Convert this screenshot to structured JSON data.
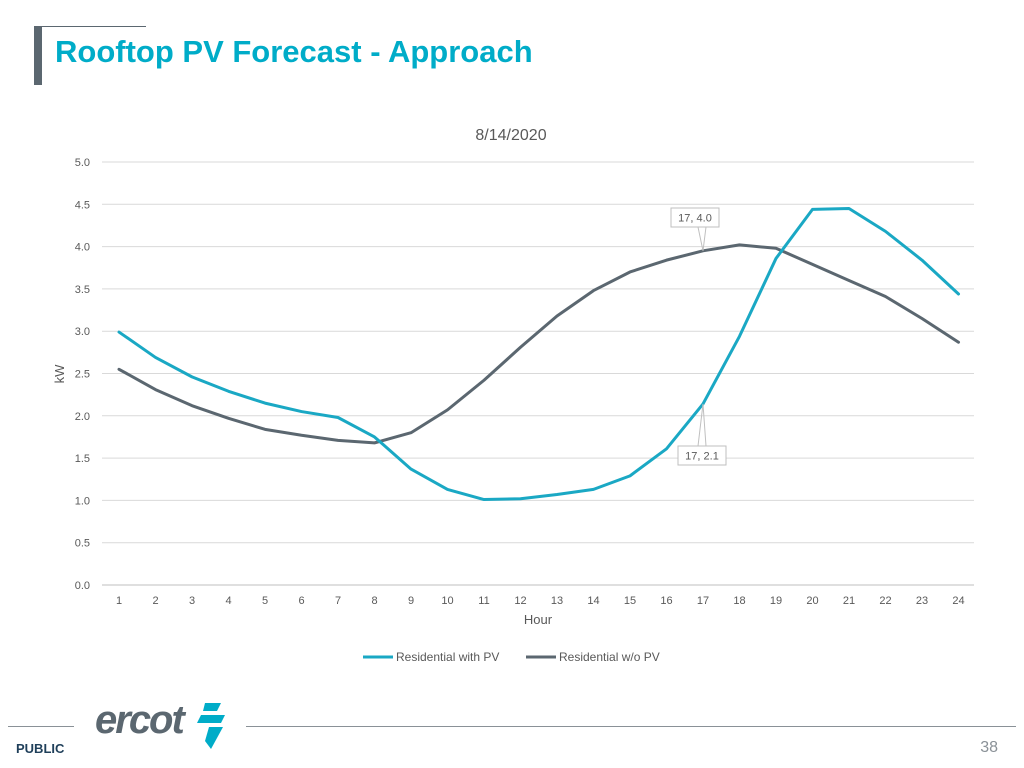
{
  "slide": {
    "title": "Rooftop PV Forecast - Approach",
    "footer_label": "PUBLIC",
    "page_number": "38",
    "logo_text": "ercot"
  },
  "colors": {
    "accent": "#00acc8",
    "series_with_pv": "#1aa8c4",
    "series_without_pv": "#5b6770",
    "frame": "#5b6770"
  },
  "chart_data": {
    "type": "line",
    "title": "8/14/2020",
    "xlabel": "Hour",
    "ylabel": "kW",
    "categories": [
      "1",
      "2",
      "3",
      "4",
      "5",
      "6",
      "7",
      "8",
      "9",
      "10",
      "11",
      "12",
      "13",
      "14",
      "15",
      "16",
      "17",
      "18",
      "19",
      "20",
      "21",
      "22",
      "23",
      "24"
    ],
    "ylim": [
      0,
      5.0
    ],
    "yticks": [
      "0.0",
      "0.5",
      "1.0",
      "1.5",
      "2.0",
      "2.5",
      "3.0",
      "3.5",
      "4.0",
      "4.5",
      "5.0"
    ],
    "grid": true,
    "legend_position": "bottom",
    "series": [
      {
        "name": "Residential with PV",
        "color": "#1aa8c4",
        "values": [
          2.99,
          2.69,
          2.46,
          2.29,
          2.15,
          2.05,
          1.98,
          1.75,
          1.37,
          1.13,
          1.01,
          1.02,
          1.07,
          1.13,
          1.29,
          1.61,
          2.14,
          2.94,
          3.86,
          4.44,
          4.45,
          4.18,
          3.84,
          3.44
        ]
      },
      {
        "name": "Residential w/o PV",
        "color": "#5b6770",
        "values": [
          2.55,
          2.31,
          2.12,
          1.97,
          1.84,
          1.77,
          1.71,
          1.68,
          1.8,
          2.07,
          2.42,
          2.81,
          3.18,
          3.48,
          3.7,
          3.84,
          3.95,
          4.02,
          3.98,
          3.79,
          3.6,
          3.41,
          3.15,
          2.87
        ]
      }
    ],
    "annotations": [
      {
        "label": "17, 4.0",
        "series": 1,
        "index": 16,
        "placement": "above"
      },
      {
        "label": "17, 2.1",
        "series": 0,
        "index": 16,
        "placement": "below"
      }
    ]
  }
}
